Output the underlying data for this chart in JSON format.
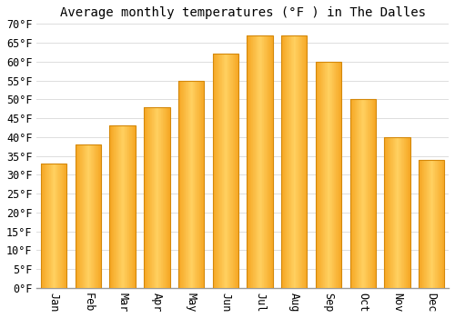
{
  "title": "Average monthly temperatures (°F ) in The Dalles",
  "months": [
    "Jan",
    "Feb",
    "Mar",
    "Apr",
    "May",
    "Jun",
    "Jul",
    "Aug",
    "Sep",
    "Oct",
    "Nov",
    "Dec"
  ],
  "values": [
    33,
    38,
    43,
    48,
    55,
    62,
    67,
    67,
    60,
    50,
    40,
    34
  ],
  "bar_color_left": "#F5A623",
  "bar_color_mid": "#FFD060",
  "bar_color_right": "#F5A623",
  "bar_edge_color": "#D4880A",
  "background_color": "#FFFFFF",
  "grid_color": "#DDDDDD",
  "ylim": [
    0,
    70
  ],
  "ytick_step": 5,
  "title_fontsize": 10,
  "tick_fontsize": 8.5,
  "font_family": "monospace"
}
